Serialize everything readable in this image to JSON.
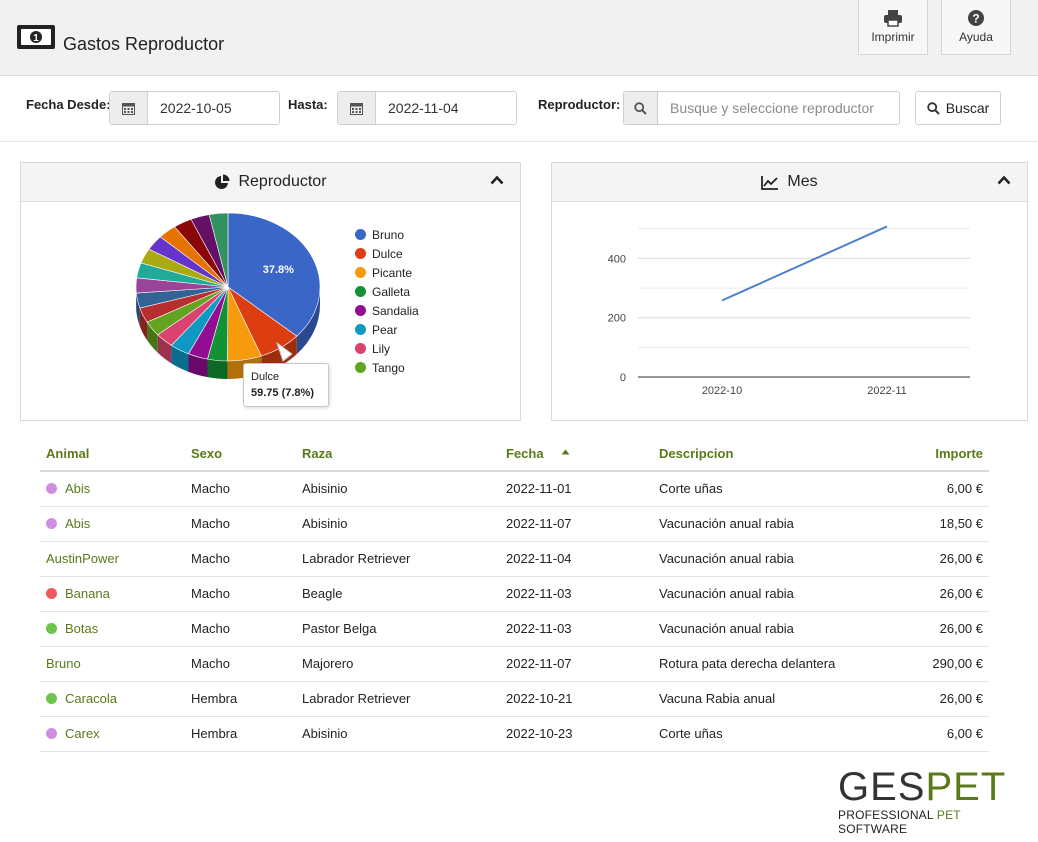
{
  "header": {
    "title": "Gastos Reproductor",
    "print_label": "Imprimir",
    "help_label": "Ayuda"
  },
  "filters": {
    "date_from_label": "Fecha Desde:",
    "date_from_value": "2022-10-05",
    "date_to_label": "Hasta:",
    "date_to_value": "2022-11-04",
    "breeder_label": "Reproductor:",
    "breeder_placeholder": "Busque y seleccione reproductor",
    "search_label": "Buscar"
  },
  "pie_panel": {
    "title": "Reproductor",
    "slice_label": "37.8%",
    "tooltip_name": "Dulce",
    "tooltip_value": "59.75 (7.8%)"
  },
  "line_panel": {
    "title": "Mes"
  },
  "chart_data": [
    {
      "type": "pie",
      "title": "Reproductor",
      "labels": [
        "Bruno",
        "Dulce",
        "Picante",
        "Galleta",
        "Sandalia",
        "Pear",
        "Lily",
        "Tango",
        "",
        "",
        "",
        "",
        "",
        "",
        "",
        "",
        "",
        ""
      ],
      "values": [
        37.8,
        7.8,
        6.2,
        3.6,
        3.6,
        3.6,
        3.4,
        3.4,
        3.4,
        3.4,
        3.4,
        3.4,
        3.4,
        3.4,
        3.4,
        3.4,
        3.4,
        3.4
      ],
      "colors": [
        "#3a67c7",
        "#dc3e12",
        "#f79a0e",
        "#129135",
        "#920d92",
        "#0d99c2",
        "#d9436e",
        "#62a31f",
        "#b82e2e",
        "#316395",
        "#994499",
        "#22aa99",
        "#aaaa11",
        "#6633cc",
        "#e67300",
        "#8b0707",
        "#651067",
        "#329262"
      ],
      "legend": [
        "Bruno",
        "Dulce",
        "Picante",
        "Galleta",
        "Sandalia",
        "Pear",
        "Lily",
        "Tango"
      ],
      "legend_position": "right"
    },
    {
      "type": "line",
      "title": "Mes",
      "categories": [
        "2022-10",
        "2022-11"
      ],
      "series": [
        {
          "values": [
            258,
            508
          ]
        }
      ],
      "y_ticks": [
        "0",
        "200",
        "400"
      ],
      "ylim": [
        0,
        560
      ],
      "grid": true,
      "color": "#4f7fd0"
    }
  ],
  "table": {
    "columns": [
      "Animal",
      "Sexo",
      "Raza",
      "Fecha",
      "Descripcion",
      "Importe"
    ],
    "rows": [
      {
        "animal": "Abis",
        "dot": "#cf8fe0",
        "sexo": "Macho",
        "raza": "Abisinio",
        "fecha": "2022-11-01",
        "desc": "Corte uñas",
        "importe": "6,00 €"
      },
      {
        "animal": "Abis",
        "dot": "#cf8fe0",
        "sexo": "Macho",
        "raza": "Abisinio",
        "fecha": "2022-11-07",
        "desc": "Vacunación anual rabia",
        "importe": "18,50 €"
      },
      {
        "animal": "AustinPower",
        "dot": "",
        "sexo": "Macho",
        "raza": "Labrador Retriever",
        "fecha": "2022-11-04",
        "desc": "Vacunación anual rabia",
        "importe": "26,00 €"
      },
      {
        "animal": "Banana",
        "dot": "#ee5a5a",
        "sexo": "Macho",
        "raza": "Beagle",
        "fecha": "2022-11-03",
        "desc": "Vacunación anual rabia",
        "importe": "26,00 €"
      },
      {
        "animal": "Botas",
        "dot": "#6cc44a",
        "sexo": "Macho",
        "raza": "Pastor Belga",
        "fecha": "2022-11-03",
        "desc": "Vacunación anual rabia",
        "importe": "26,00 €"
      },
      {
        "animal": "Bruno",
        "dot": "",
        "sexo": "Macho",
        "raza": "Majorero",
        "fecha": "2022-11-07",
        "desc": "Rotura pata derecha delantera",
        "importe": "290,00 €"
      },
      {
        "animal": "Caracola",
        "dot": "#6cc44a",
        "sexo": "Hembra",
        "raza": "Labrador Retriever",
        "fecha": "2022-10-21",
        "desc": "Vacuna Rabia anual",
        "importe": "26,00 €"
      },
      {
        "animal": "Carex",
        "dot": "#cf8fe0",
        "sexo": "Hembra",
        "raza": "Abisinio",
        "fecha": "2022-10-23",
        "desc": "Corte uñas",
        "importe": "6,00 €"
      }
    ]
  },
  "brand": {
    "name_part1": "GES",
    "name_part2": "PET",
    "tagline_part1": "PROFESSIONAL",
    "tagline_part2": "PET",
    "tagline_part3": "SOFTWARE"
  },
  "colors": {
    "accent_green": "#5a7a1a",
    "header_bg": "#f1f1f1"
  }
}
